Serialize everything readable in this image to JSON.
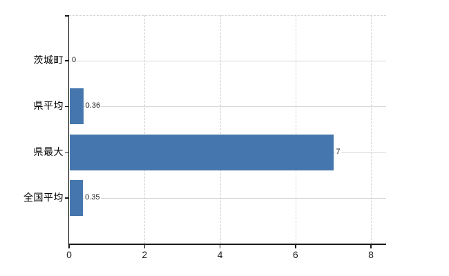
{
  "chart_data": {
    "type": "bar",
    "orientation": "horizontal",
    "title": "",
    "xlabel": "",
    "ylabel": "",
    "categories": [
      "茨城町",
      "県平均",
      "県最大",
      "全国平均"
    ],
    "values": [
      0,
      0.36,
      7,
      0.35
    ],
    "value_labels": [
      "0",
      "0.36",
      "7",
      "0.35"
    ],
    "xlim": [
      0,
      8
    ],
    "x_ticks": [
      0,
      2,
      4,
      6,
      8
    ],
    "x_tick_labels": [
      "0",
      "2",
      "4",
      "6",
      "8"
    ],
    "grid": "on",
    "legend": "none",
    "colors": {
      "bar": "#4576ad",
      "horizontal_gridline": "#d2d9d0",
      "vertical_gridline": "#d4d4d4",
      "axis": "#1a1a1a",
      "text": "#000000",
      "background": "#ffffff"
    }
  }
}
